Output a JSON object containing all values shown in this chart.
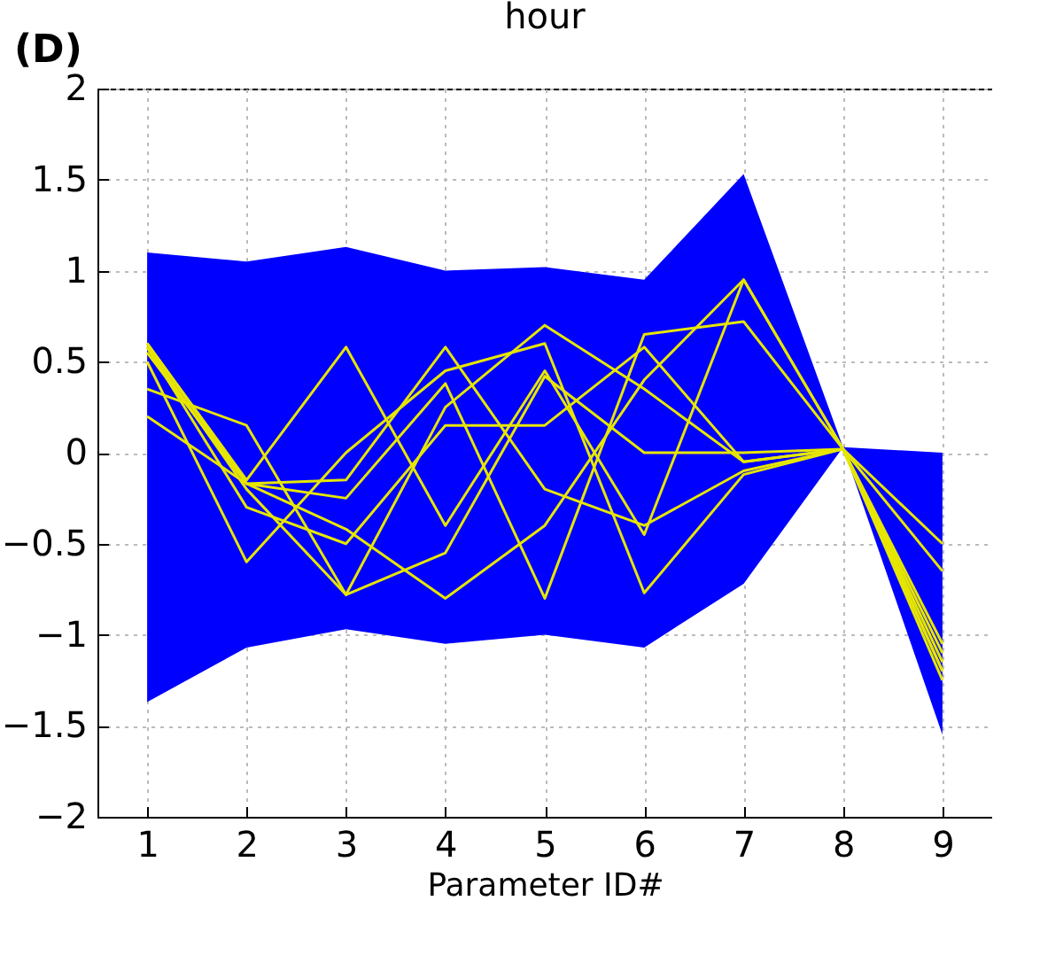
{
  "chart_data": {
    "type": "line",
    "title": "hour",
    "xlabel": "Parameter ID#",
    "annotations": [
      "(D)"
    ],
    "x": [
      1,
      2,
      3,
      4,
      5,
      6,
      7,
      8,
      9
    ],
    "xlim": [
      0.5,
      9.5
    ],
    "xticks": [
      1,
      2,
      3,
      4,
      5,
      6,
      7,
      8,
      9
    ],
    "ylim": [
      -2,
      2
    ],
    "yticks": [
      -2,
      -1.5,
      -1,
      -0.5,
      0,
      0.5,
      1,
      1.5,
      2
    ],
    "grid": true,
    "series": [
      {
        "color": "#0000ff",
        "values": [
          null,
          null,
          null,
          null,
          null,
          null,
          null,
          null,
          null
        ],
        "upper": [
          1.1,
          1.05,
          1.13,
          1.0,
          1.02,
          0.95,
          1.53,
          0.03,
          0.0
        ],
        "lower": [
          -1.37,
          -1.07,
          -0.97,
          -1.05,
          -1.0,
          -1.07,
          -0.72,
          0.03,
          -1.55
        ]
      },
      {
        "color": "#e6e600",
        "values": [
          0.6,
          -0.15,
          0.58,
          -0.4,
          0.45,
          -0.45,
          0.95,
          0.02,
          -1.15
        ]
      },
      {
        "color": "#e6e600",
        "values": [
          0.58,
          -0.2,
          -0.78,
          0.25,
          0.7,
          0.35,
          -0.05,
          0.02,
          -1.1
        ]
      },
      {
        "color": "#e6e600",
        "values": [
          0.55,
          -0.17,
          -0.15,
          0.58,
          -0.2,
          -0.4,
          -0.1,
          0.02,
          -0.5
        ]
      },
      {
        "color": "#e6e600",
        "values": [
          0.35,
          0.15,
          -0.78,
          -0.55,
          0.42,
          0.0,
          0.0,
          0.02,
          -1.2
        ]
      },
      {
        "color": "#e6e600",
        "values": [
          0.2,
          -0.17,
          -0.25,
          0.38,
          -0.8,
          0.65,
          0.72,
          0.02,
          -1.25
        ]
      },
      {
        "color": "#e6e600",
        "values": [
          0.5,
          -0.6,
          0.0,
          0.45,
          0.6,
          -0.77,
          -0.12,
          0.02,
          -0.65
        ]
      },
      {
        "color": "#e6e600",
        "values": [
          0.58,
          -0.3,
          -0.5,
          0.15,
          0.15,
          0.58,
          -0.05,
          0.02,
          -1.05
        ]
      },
      {
        "color": "#e6e600",
        "values": [
          0.6,
          -0.17,
          -0.42,
          -0.8,
          -0.4,
          0.4,
          0.95,
          0.02,
          -1.2
        ]
      }
    ]
  }
}
